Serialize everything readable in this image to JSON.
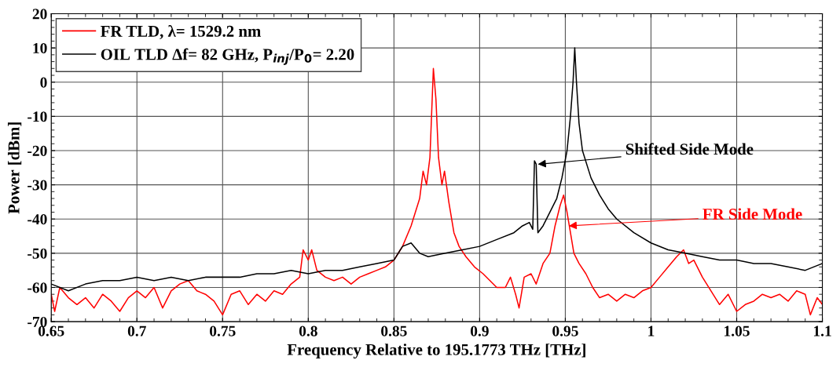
{
  "chart_data": {
    "type": "line",
    "xlabel": "Frequency Relative to 195.1773 THz [THz]",
    "ylabel": "Power [dBm]",
    "xlim": [
      0.65,
      1.1
    ],
    "xticks": [
      0.65,
      0.7,
      0.75,
      0.8,
      0.85,
      0.9,
      0.95,
      1,
      1.05,
      1.1
    ],
    "ylim": [
      -70,
      20
    ],
    "yticks": [
      -70,
      -60,
      -50,
      -40,
      -30,
      -20,
      -10,
      0,
      10,
      20
    ],
    "grid": true,
    "legend": "top left",
    "marker": "none",
    "line_style": "solid",
    "series": [
      {
        "name": "FR TLD, λ= 1529.2 nm",
        "color": "#ff0000",
        "x": [
          0.65,
          0.652,
          0.655,
          0.66,
          0.665,
          0.67,
          0.675,
          0.68,
          0.685,
          0.69,
          0.695,
          0.7,
          0.705,
          0.71,
          0.715,
          0.72,
          0.725,
          0.73,
          0.735,
          0.74,
          0.745,
          0.75,
          0.755,
          0.76,
          0.765,
          0.77,
          0.775,
          0.78,
          0.785,
          0.79,
          0.795,
          0.797,
          0.8,
          0.802,
          0.805,
          0.81,
          0.815,
          0.82,
          0.825,
          0.83,
          0.835,
          0.84,
          0.845,
          0.85,
          0.855,
          0.86,
          0.865,
          0.867,
          0.869,
          0.871,
          0.873,
          0.8745,
          0.876,
          0.878,
          0.8795,
          0.882,
          0.885,
          0.888,
          0.892,
          0.897,
          0.902,
          0.906,
          0.91,
          0.915,
          0.918,
          0.921,
          0.923,
          0.926,
          0.93,
          0.933,
          0.937,
          0.941,
          0.944,
          0.947,
          0.949,
          0.951,
          0.953,
          0.955,
          0.958,
          0.962,
          0.966,
          0.97,
          0.975,
          0.98,
          0.985,
          0.99,
          0.995,
          1.0,
          1.005,
          1.01,
          1.015,
          1.019,
          1.022,
          1.025,
          1.03,
          1.035,
          1.04,
          1.045,
          1.05,
          1.055,
          1.06,
          1.065,
          1.07,
          1.075,
          1.08,
          1.085,
          1.09,
          1.093,
          1.097,
          1.1
        ],
        "values": [
          -62,
          -67,
          -60,
          -63,
          -65,
          -63,
          -66,
          -62,
          -64,
          -67,
          -63,
          -61,
          -63,
          -60,
          -66,
          -61,
          -59,
          -58,
          -61,
          -62,
          -64,
          -68,
          -62,
          -61,
          -65,
          -62,
          -64,
          -61,
          -62,
          -59,
          -57,
          -49,
          -52,
          -49,
          -55,
          -57,
          -58,
          -57,
          -59,
          -57,
          -56,
          -55,
          -54,
          -52,
          -48,
          -42,
          -34,
          -26,
          -30,
          -22,
          4,
          -5,
          -22,
          -30,
          -26,
          -35,
          -44,
          -48,
          -51,
          -54,
          -56,
          -58,
          -60,
          -60,
          -57,
          -62,
          -66,
          -57,
          -56,
          -59,
          -53,
          -50,
          -42,
          -36,
          -33,
          -38,
          -44,
          -50,
          -53,
          -56,
          -60,
          -63,
          -62,
          -64,
          -62,
          -63,
          -61,
          -60,
          -57,
          -54,
          -51,
          -49,
          -53,
          -52,
          -57,
          -61,
          -65,
          -62,
          -67,
          -65,
          -64,
          -62,
          -63,
          -62,
          -64,
          -61,
          -62,
          -68,
          -63,
          -65
        ]
      },
      {
        "name": "OIL TLD Δf= 82 GHz, P$_{inj}$/P$_{0}$= 2.20",
        "color": "#000000",
        "x": [
          0.65,
          0.66,
          0.67,
          0.68,
          0.69,
          0.7,
          0.71,
          0.72,
          0.73,
          0.74,
          0.75,
          0.76,
          0.77,
          0.78,
          0.79,
          0.8,
          0.81,
          0.82,
          0.83,
          0.84,
          0.85,
          0.855,
          0.86,
          0.865,
          0.87,
          0.88,
          0.89,
          0.9,
          0.91,
          0.92,
          0.925,
          0.929,
          0.931,
          0.932,
          0.933,
          0.934,
          0.937,
          0.94,
          0.945,
          0.948,
          0.951,
          0.953,
          0.9545,
          0.9555,
          0.9565,
          0.958,
          0.96,
          0.965,
          0.97,
          0.975,
          0.98,
          0.99,
          1.0,
          1.01,
          1.02,
          1.03,
          1.04,
          1.05,
          1.06,
          1.07,
          1.08,
          1.09,
          1.1
        ],
        "values": [
          -59,
          -61,
          -59,
          -58,
          -58,
          -57,
          -58,
          -57,
          -58,
          -57,
          -57,
          -57,
          -56,
          -56,
          -55,
          -56,
          -55,
          -55,
          -54,
          -53,
          -52,
          -48,
          -47,
          -50,
          -51,
          -50,
          -49,
          -48,
          -46,
          -44,
          -42,
          -41,
          -43,
          -23,
          -24,
          -44,
          -42,
          -39,
          -34,
          -28,
          -20,
          -10,
          0,
          10,
          0,
          -12,
          -20,
          -28,
          -33,
          -37,
          -40,
          -44,
          -47,
          -49,
          -50,
          -51,
          -52,
          -52,
          -53,
          -53,
          -54,
          -55,
          -53
        ]
      }
    ],
    "annotations": [
      {
        "text": "Shifted Side Mode",
        "x": 0.934,
        "y": -24
      },
      {
        "text": "FR Side Mode",
        "x": 0.952,
        "y": -42
      }
    ]
  }
}
